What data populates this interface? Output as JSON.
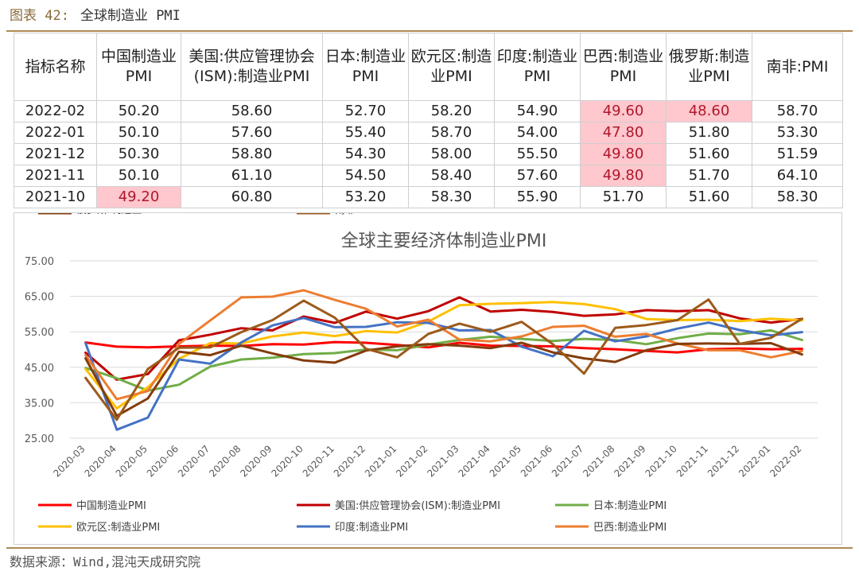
{
  "figure": {
    "number": "图表 42:",
    "title": "全球制造业 PMI",
    "source": "数据来源：Wind,混沌天成研究院"
  },
  "table": {
    "headers": [
      "指标名称",
      "中国制造业PMI",
      "美国:供应管理协会(ISM):制造业PMI",
      "日本:制造业PMI",
      "欧元区:制造业PMI",
      "印度:制造业PMI",
      "巴西:制造业PMI",
      "俄罗斯:制造业PMI",
      "南非:PMI"
    ],
    "rows": [
      {
        "date": "2022-02",
        "values": [
          "50.20",
          "58.60",
          "52.70",
          "58.20",
          "54.90",
          "49.60",
          "48.60",
          "58.70"
        ],
        "highlight": [
          false,
          false,
          false,
          false,
          false,
          true,
          true,
          false
        ]
      },
      {
        "date": "2022-01",
        "values": [
          "50.10",
          "57.60",
          "55.40",
          "58.70",
          "54.00",
          "47.80",
          "51.80",
          "53.30"
        ],
        "highlight": [
          false,
          false,
          false,
          false,
          false,
          true,
          false,
          false
        ]
      },
      {
        "date": "2021-12",
        "values": [
          "50.30",
          "58.80",
          "54.30",
          "58.00",
          "55.50",
          "49.80",
          "51.60",
          "51.59"
        ],
        "highlight": [
          false,
          false,
          false,
          false,
          false,
          true,
          false,
          false
        ]
      },
      {
        "date": "2021-11",
        "values": [
          "50.10",
          "61.10",
          "54.50",
          "58.40",
          "57.60",
          "49.80",
          "51.70",
          "64.10"
        ],
        "highlight": [
          false,
          false,
          false,
          false,
          false,
          true,
          false,
          false
        ]
      },
      {
        "date": "2021-10",
        "values": [
          "49.20",
          "60.80",
          "53.20",
          "58.30",
          "55.90",
          "51.70",
          "51.60",
          "58.30"
        ],
        "highlight": [
          true,
          false,
          false,
          false,
          false,
          false,
          false,
          false
        ]
      }
    ]
  },
  "chart_data": {
    "type": "line",
    "title": "全球主要经济体制造业PMI",
    "xlabel": "",
    "ylabel": "",
    "ylim": [
      25,
      75
    ],
    "yticks": [
      "25.00",
      "35.00",
      "45.00",
      "55.00",
      "65.00",
      "75.00"
    ],
    "grid": true,
    "legend_position": "bottom",
    "x": [
      "2020-03",
      "2020-04",
      "2020-05",
      "2020-06",
      "2020-07",
      "2020-08",
      "2020-09",
      "2020-10",
      "2020-11",
      "2020-12",
      "2021-01",
      "2021-02",
      "2021-03",
      "2021-04",
      "2021-05",
      "2021-06",
      "2021-07",
      "2021-08",
      "2021-09",
      "2021-10",
      "2021-11",
      "2021-12",
      "2022-01",
      "2022-02"
    ],
    "series": [
      {
        "name": "中国制造业PMI",
        "color": "#ff0000",
        "values": [
          52.0,
          50.8,
          50.6,
          50.9,
          51.1,
          51.0,
          51.5,
          51.4,
          52.1,
          51.9,
          51.3,
          50.6,
          51.9,
          51.1,
          51.0,
          50.9,
          50.4,
          50.1,
          49.6,
          49.2,
          50.1,
          50.3,
          50.1,
          50.2
        ]
      },
      {
        "name": "美国:供应管理协会(ISM):制造业PMI",
        "color": "#c00000",
        "values": [
          49.1,
          41.5,
          43.1,
          52.6,
          54.2,
          56.0,
          55.4,
          59.3,
          57.5,
          60.7,
          58.7,
          60.8,
          64.7,
          60.7,
          61.2,
          60.6,
          59.5,
          59.9,
          61.1,
          60.8,
          61.1,
          58.8,
          57.6,
          58.6
        ]
      },
      {
        "name": "日本:制造业PMI",
        "color": "#70ad47",
        "values": [
          44.8,
          41.9,
          38.4,
          40.1,
          45.2,
          47.2,
          47.7,
          48.7,
          49.0,
          50.0,
          49.8,
          51.4,
          52.7,
          53.6,
          53.0,
          52.4,
          53.0,
          52.7,
          51.5,
          53.2,
          54.5,
          54.3,
          55.4,
          52.7
        ]
      },
      {
        "name": "欧元区:制造业PMI",
        "color": "#ffc000",
        "values": [
          44.5,
          33.4,
          39.4,
          47.4,
          51.8,
          51.7,
          53.7,
          54.8,
          53.8,
          55.2,
          54.8,
          57.9,
          62.5,
          62.9,
          63.1,
          63.4,
          62.8,
          61.4,
          58.6,
          58.3,
          58.4,
          58.0,
          58.7,
          58.2
        ]
      },
      {
        "name": "印度:制造业PMI",
        "color": "#4472c4",
        "values": [
          51.8,
          27.4,
          30.8,
          47.2,
          46.0,
          52.0,
          56.8,
          58.9,
          56.3,
          56.4,
          57.7,
          57.5,
          55.4,
          55.5,
          50.8,
          48.1,
          55.3,
          52.3,
          53.7,
          55.9,
          57.6,
          55.5,
          54.0,
          54.9
        ]
      },
      {
        "name": "巴西:制造业PMI",
        "color": "#ed7d31",
        "values": [
          48.4,
          36.0,
          38.3,
          51.6,
          58.2,
          64.7,
          64.9,
          66.7,
          64.0,
          61.5,
          56.5,
          58.4,
          52.8,
          52.3,
          53.7,
          56.4,
          56.7,
          53.6,
          54.4,
          51.7,
          49.8,
          49.8,
          47.8,
          49.6
        ]
      },
      {
        "name": "俄罗斯:制造业PMI",
        "color": "#843c0c",
        "values": [
          47.5,
          31.3,
          36.2,
          49.4,
          48.4,
          51.1,
          48.9,
          46.9,
          46.3,
          49.7,
          50.9,
          51.5,
          51.1,
          50.4,
          51.9,
          49.2,
          47.5,
          46.5,
          49.8,
          51.6,
          51.7,
          51.6,
          51.8,
          48.6
        ]
      },
      {
        "name": "南非:PMI",
        "color": "#9c5a1a",
        "values": [
          42.0,
          30.2,
          44.5,
          50.5,
          50.6,
          54.9,
          58.3,
          63.8,
          59.0,
          50.2,
          47.8,
          54.4,
          57.3,
          55.0,
          57.8,
          51.5,
          43.2,
          56.1,
          56.9,
          58.3,
          64.1,
          51.6,
          53.3,
          58.7
        ]
      }
    ]
  }
}
